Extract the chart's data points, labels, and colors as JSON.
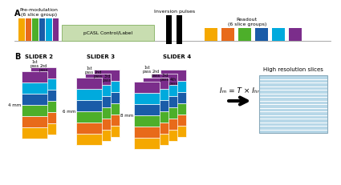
{
  "colors_6": [
    "#F5A800",
    "#E86A1A",
    "#4DAF2A",
    "#1A5CA8",
    "#00AADD",
    "#7B2D8B"
  ],
  "pcasl_color": "#C8DDB0",
  "pcasl_edge": "#90B870",
  "bg_color": "#FFFFFF",
  "high_res_color": "#B8D8E8",
  "pre_mod_title": "Pre-modulation\n(6 slice group)",
  "inversion_title": "Inversion pulses",
  "readout_title": "Readout\n(6 slice groups)",
  "pcasl_text": "pCASL Control/Label",
  "slider2_label": "SLIDER 2",
  "slider3_label": "SLIDER 3",
  "slider4_label": "SLIDER 4",
  "label_A": "A",
  "label_B": "B",
  "eq_text": "Iₘ = T × Iₕᵣ",
  "high_res_label": "High resolution slices",
  "mm2": "4 mm",
  "mm3": "6 mm",
  "mm4": "8 mm"
}
